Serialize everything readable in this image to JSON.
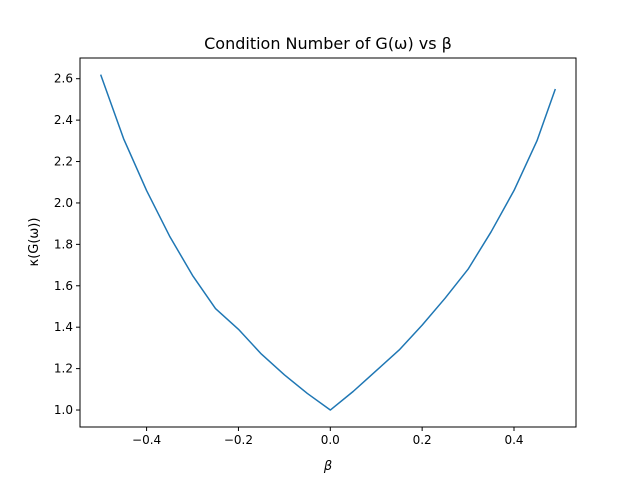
{
  "chart_data": {
    "type": "line",
    "title": "Condition Number of G(ω) vs β",
    "xlabel": "β",
    "ylabel": "κ(G(ω))",
    "xlim": [
      -0.545,
      0.535
    ],
    "ylim": [
      0.918,
      2.7
    ],
    "xticks": [
      -0.4,
      -0.2,
      0.0,
      0.2,
      0.4
    ],
    "xtick_labels": [
      "−0.4",
      "−0.2",
      "0.0",
      "0.2",
      "0.4"
    ],
    "yticks": [
      1.0,
      1.2,
      1.4,
      1.6,
      1.8,
      2.0,
      2.2,
      2.4,
      2.6
    ],
    "ytick_labels": [
      "1.0",
      "1.2",
      "1.4",
      "1.6",
      "1.8",
      "2.0",
      "2.2",
      "2.4",
      "2.6"
    ],
    "grid": false,
    "series": [
      {
        "color": "#1f77b4",
        "x": [
          -0.5,
          -0.45,
          -0.4,
          -0.35,
          -0.3,
          -0.25,
          -0.2,
          -0.15,
          -0.1,
          -0.05,
          0.0,
          0.05,
          0.1,
          0.15,
          0.2,
          0.25,
          0.3,
          0.35,
          0.4,
          0.45,
          0.49
        ],
        "y": [
          2.62,
          2.31,
          2.06,
          1.84,
          1.65,
          1.49,
          1.39,
          1.27,
          1.17,
          1.08,
          1.0,
          1.09,
          1.19,
          1.29,
          1.41,
          1.54,
          1.68,
          1.86,
          2.06,
          2.3,
          2.55
        ]
      }
    ]
  }
}
